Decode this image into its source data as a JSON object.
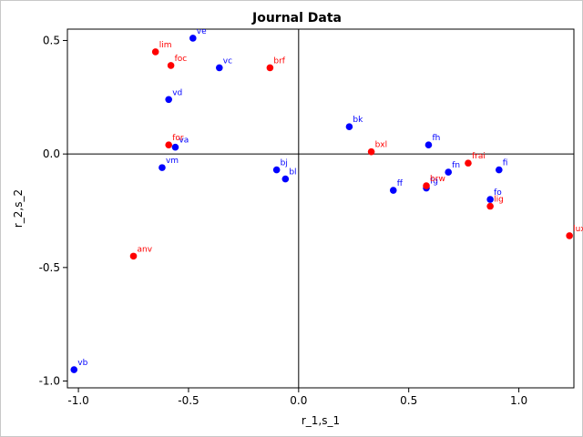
{
  "chart_data": {
    "type": "scatter",
    "title": "Journal Data",
    "xlabel": "r_1,s_1",
    "ylabel": "r_2,s_2",
    "xlim": [
      -1.05,
      1.25
    ],
    "ylim": [
      -1.03,
      0.55
    ],
    "x_ticks": [
      -1.0,
      -0.5,
      0.0,
      0.5,
      1.0
    ],
    "x_tick_labels": [
      "-1.0",
      "-0.5",
      "0.0",
      "0.5",
      "1.0"
    ],
    "y_ticks": [
      -1.0,
      -0.5,
      0.0,
      0.5
    ],
    "y_tick_labels": [
      "-1.0",
      "-0.5",
      "0.0",
      "0.5"
    ],
    "reference_lines": {
      "x": 0,
      "y": 0
    },
    "grid": false,
    "colors": {
      "blue": "#0000ff",
      "red": "#ff0000",
      "axis": "#000000",
      "frame": "#c8c8c8"
    },
    "series": [
      {
        "color": "#0000ff",
        "points": [
          {
            "label": "ve",
            "x": -0.48,
            "y": 0.51
          },
          {
            "label": "vc",
            "x": -0.36,
            "y": 0.38
          },
          {
            "label": "vd",
            "x": -0.59,
            "y": 0.24
          },
          {
            "label": "va",
            "x": -0.56,
            "y": 0.03
          },
          {
            "label": "vm",
            "x": -0.62,
            "y": -0.06
          },
          {
            "label": "bj",
            "x": -0.1,
            "y": -0.07
          },
          {
            "label": "bl",
            "x": -0.06,
            "y": -0.11
          },
          {
            "label": "bk",
            "x": 0.23,
            "y": 0.12
          },
          {
            "label": "fh",
            "x": 0.59,
            "y": 0.04
          },
          {
            "label": "fn",
            "x": 0.68,
            "y": -0.08
          },
          {
            "label": "fi",
            "x": 0.91,
            "y": -0.07
          },
          {
            "label": "ff",
            "x": 0.43,
            "y": -0.16
          },
          {
            "label": "fg",
            "x": 0.58,
            "y": -0.15
          },
          {
            "label": "fo",
            "x": 0.87,
            "y": -0.2
          },
          {
            "label": "vb",
            "x": -1.02,
            "y": -0.95
          }
        ]
      },
      {
        "color": "#ff0000",
        "points": [
          {
            "label": "lim",
            "x": -0.65,
            "y": 0.45
          },
          {
            "label": "foc",
            "x": -0.58,
            "y": 0.39
          },
          {
            "label": "brf",
            "x": -0.13,
            "y": 0.38
          },
          {
            "label": "for",
            "x": -0.59,
            "y": 0.04
          },
          {
            "label": "bxl",
            "x": 0.33,
            "y": 0.01
          },
          {
            "label": "frai",
            "x": 0.77,
            "y": -0.04
          },
          {
            "label": "brw",
            "x": 0.58,
            "y": -0.14
          },
          {
            "label": "lig",
            "x": 0.87,
            "y": -0.23
          },
          {
            "label": "lux",
            "x": 1.23,
            "y": -0.36
          },
          {
            "label": "anv",
            "x": -0.75,
            "y": -0.45
          }
        ]
      }
    ]
  }
}
